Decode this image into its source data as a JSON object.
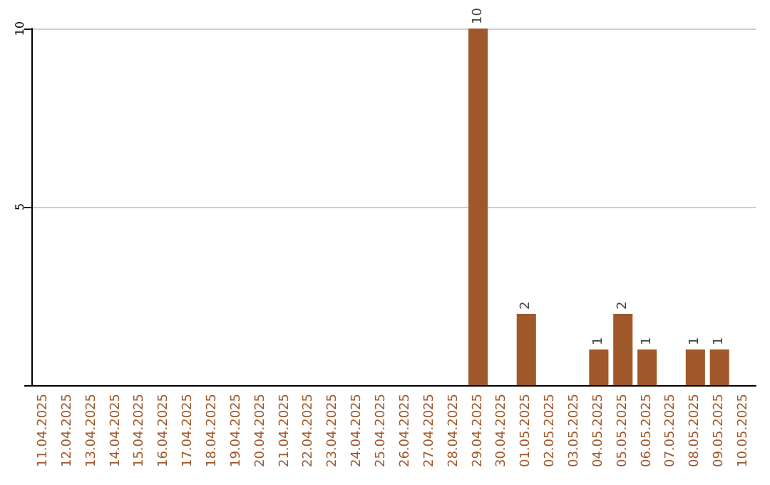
{
  "chart_data": {
    "type": "bar",
    "categories": [
      "11.04.2025",
      "12.04.2025",
      "13.04.2025",
      "14.04.2025",
      "15.04.2025",
      "16.04.2025",
      "17.04.2025",
      "18.04.2025",
      "19.04.2025",
      "20.04.2025",
      "21.04.2025",
      "22.04.2025",
      "23.04.2025",
      "24.04.2025",
      "25.04.2025",
      "26.04.2025",
      "27.04.2025",
      "28.04.2025",
      "29.04.2025",
      "30.04.2025",
      "01.05.2025",
      "02.05.2025",
      "03.05.2025",
      "04.05.2025",
      "05.05.2025",
      "06.05.2025",
      "07.05.2025",
      "08.05.2025",
      "09.05.2025",
      "10.05.2025"
    ],
    "values": [
      0,
      0,
      0,
      0,
      0,
      0,
      0,
      0,
      0,
      0,
      0,
      0,
      0,
      0,
      0,
      0,
      0,
      0,
      10,
      0,
      2,
      0,
      0,
      1,
      2,
      1,
      0,
      1,
      1,
      0
    ],
    "value_labels": [
      null,
      null,
      null,
      null,
      null,
      null,
      null,
      null,
      null,
      null,
      null,
      null,
      null,
      null,
      null,
      null,
      null,
      null,
      "10",
      null,
      "2",
      null,
      null,
      "1",
      "2",
      "1",
      null,
      "1",
      "1",
      null
    ],
    "color": "#a0582a",
    "ylim": [
      0,
      10
    ],
    "yticks": [
      {
        "value": 0,
        "label": null
      },
      5,
      10
    ],
    "grid": "y"
  }
}
